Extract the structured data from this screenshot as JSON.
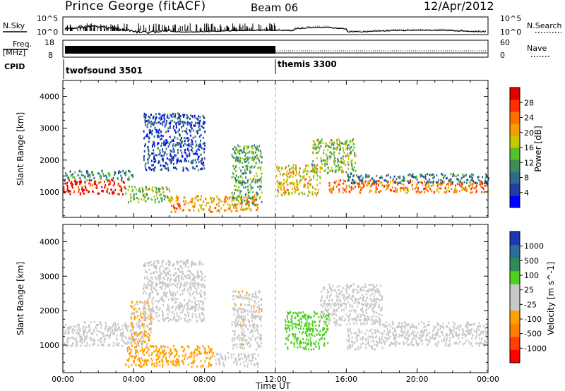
{
  "header": {
    "site": "Prince George (fitACF)",
    "beam": "Beam 06",
    "date": "12/Apr/2012"
  },
  "noise_panel": {
    "left_label": "N.Sky",
    "right_label": "N.Search",
    "left_ticks": [
      "10^5",
      "10^0"
    ],
    "right_ticks": [
      "10^5",
      "10^0"
    ]
  },
  "freq_panel": {
    "left_label_1": "Freq.",
    "left_label_2": "[MHz]",
    "left_ticks": [
      "18",
      "8"
    ],
    "right_label": "Nave",
    "right_ticks": [
      "60",
      "0"
    ]
  },
  "cpid": {
    "label": "CPID",
    "programs": [
      {
        "name": "twofsound 3501",
        "start_hour": 0
      },
      {
        "name": "themis 3300",
        "start_hour": 12
      }
    ]
  },
  "time_axis": {
    "label": "Time UT",
    "ticks": [
      "00:00",
      "04:00",
      "08:00",
      "12:00",
      "16:00",
      "20:00",
      "00:00"
    ]
  },
  "chart_data": [
    {
      "type": "heatmap",
      "title": "",
      "xlabel": "Time UT",
      "ylabel": "Slant Range [km]",
      "xlim_hours": [
        0,
        24
      ],
      "ylim": [
        200,
        4500
      ],
      "y_ticks": [
        1000,
        2000,
        3000,
        4000
      ],
      "colorbar": {
        "label": "Power [dB]",
        "ticks": [
          "28",
          "24",
          "20",
          "16",
          "12",
          "8",
          "4"
        ],
        "range": [
          0,
          30
        ],
        "colors": [
          "#0000ff",
          "#1e3fa0",
          "#2e6a8c",
          "#3f8c5a",
          "#55c02f",
          "#c8c800",
          "#f0a000",
          "#ff7000",
          "#ff3000",
          "#e00000"
        ]
      },
      "echo_regions": [
        {
          "t0": 0,
          "t1": 3.5,
          "r0": 950,
          "r1": 1400,
          "level": 28
        },
        {
          "t0": 0,
          "t1": 4,
          "r0": 1400,
          "r1": 1700,
          "level": 10
        },
        {
          "t0": 3.5,
          "t1": 6,
          "r0": 700,
          "r1": 1200,
          "level": 14
        },
        {
          "t0": 4.5,
          "t1": 8,
          "r0": 1700,
          "r1": 3500,
          "level": 5
        },
        {
          "t0": 6,
          "t1": 11,
          "r0": 400,
          "r1": 900,
          "level": 20
        },
        {
          "t0": 9.5,
          "t1": 11.2,
          "r0": 600,
          "r1": 2500,
          "level": 12
        },
        {
          "t0": 12,
          "t1": 14.5,
          "r0": 900,
          "r1": 1900,
          "level": 18
        },
        {
          "t0": 14,
          "t1": 16.5,
          "r0": 1600,
          "r1": 2700,
          "level": 14
        },
        {
          "t0": 15,
          "t1": 24,
          "r0": 1000,
          "r1": 1400,
          "level": 22
        },
        {
          "t0": 16,
          "t1": 24,
          "r0": 1300,
          "r1": 1600,
          "level": 8
        }
      ]
    },
    {
      "type": "heatmap",
      "title": "",
      "xlabel": "Time UT",
      "ylabel": "Slant Range [km]",
      "xlim_hours": [
        0,
        24
      ],
      "ylim": [
        200,
        4500
      ],
      "y_ticks": [
        1000,
        2000,
        3000,
        4000
      ],
      "colorbar": {
        "label": "Velocity [m s^-1]",
        "ticks": [
          "1000",
          "500",
          "100",
          "25",
          "-25",
          "-100",
          "-500",
          "-1000"
        ],
        "range": [
          -1000,
          1000
        ],
        "colors": [
          "#ff0000",
          "#ff4000",
          "#ff8000",
          "#ffa000",
          "#c8c8c8",
          "#c8c8c8",
          "#50d020",
          "#2e8c5a",
          "#2e6a9a",
          "#1a3ab0"
        ]
      },
      "echo_regions": [
        {
          "t0": 0,
          "t1": 4.5,
          "r0": 1000,
          "r1": 1700,
          "level": 0
        },
        {
          "t0": 3.5,
          "t1": 8.5,
          "r0": 400,
          "r1": 1000,
          "level": -300
        },
        {
          "t0": 3.8,
          "t1": 5,
          "r0": 1000,
          "r1": 2300,
          "level": -200
        },
        {
          "t0": 4.5,
          "t1": 8,
          "r0": 1700,
          "r1": 3500,
          "level": 0
        },
        {
          "t0": 8.5,
          "t1": 11,
          "r0": 400,
          "r1": 800,
          "level": 60
        },
        {
          "t0": 9.5,
          "t1": 11.2,
          "r0": 900,
          "r1": 2600,
          "level": -150
        },
        {
          "t0": 12.5,
          "t1": 15,
          "r0": 900,
          "r1": 2000,
          "level": 300
        },
        {
          "t0": 14.5,
          "t1": 18,
          "r0": 1600,
          "r1": 2800,
          "level": 0
        },
        {
          "t0": 16,
          "t1": 18,
          "r0": 900,
          "r1": 1500,
          "level": 60
        },
        {
          "t0": 18,
          "t1": 24,
          "r0": 1000,
          "r1": 1700,
          "level": 0
        }
      ]
    }
  ]
}
